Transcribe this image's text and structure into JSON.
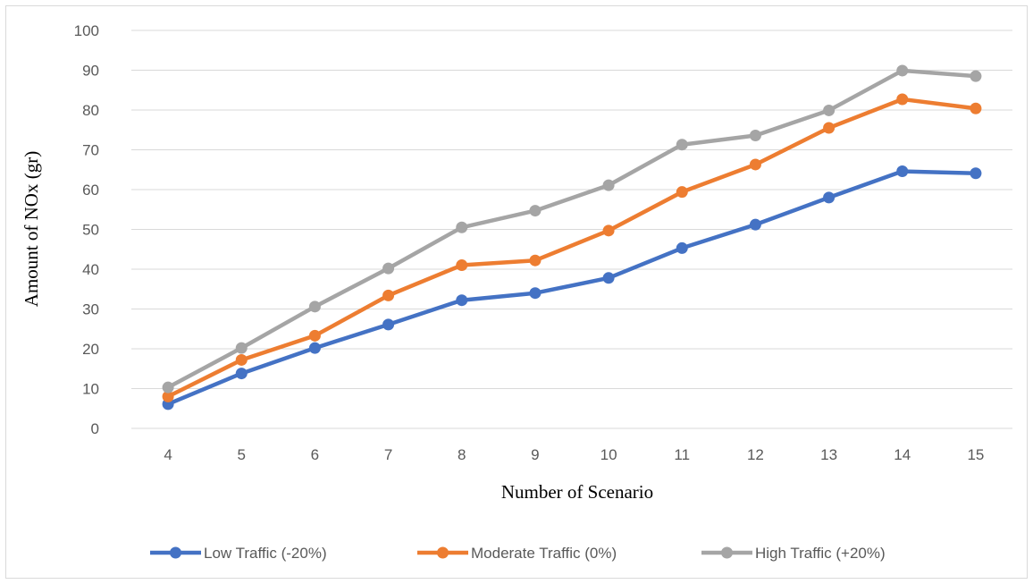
{
  "chart_data": {
    "type": "line",
    "title": "",
    "xlabel": "Number of Scenario",
    "ylabel": "Amount of NOx (gr)",
    "x": [
      4,
      5,
      6,
      7,
      8,
      9,
      10,
      11,
      12,
      13,
      14,
      15
    ],
    "ylim": [
      0,
      100
    ],
    "yticks": [
      0,
      10,
      20,
      30,
      40,
      50,
      60,
      70,
      80,
      90,
      100
    ],
    "grid": true,
    "legend_position": "bottom",
    "series": [
      {
        "name": "Low Traffic (-20%)",
        "color": "#4472C4",
        "values": [
          6.1,
          13.8,
          20.2,
          26.1,
          32.2,
          34.0,
          37.8,
          45.3,
          51.2,
          58.0,
          64.6,
          64.1
        ]
      },
      {
        "name": "Moderate Traffic (0%)",
        "color": "#ED7D31",
        "values": [
          8.0,
          17.2,
          23.3,
          33.4,
          41.0,
          42.2,
          49.7,
          59.4,
          66.3,
          75.5,
          82.7,
          80.4
        ]
      },
      {
        "name": "High Traffic (+20%)",
        "color": "#A5A5A5",
        "values": [
          10.3,
          20.2,
          30.6,
          40.2,
          50.5,
          54.7,
          61.1,
          71.3,
          73.6,
          79.9,
          89.9,
          88.5
        ]
      }
    ]
  }
}
